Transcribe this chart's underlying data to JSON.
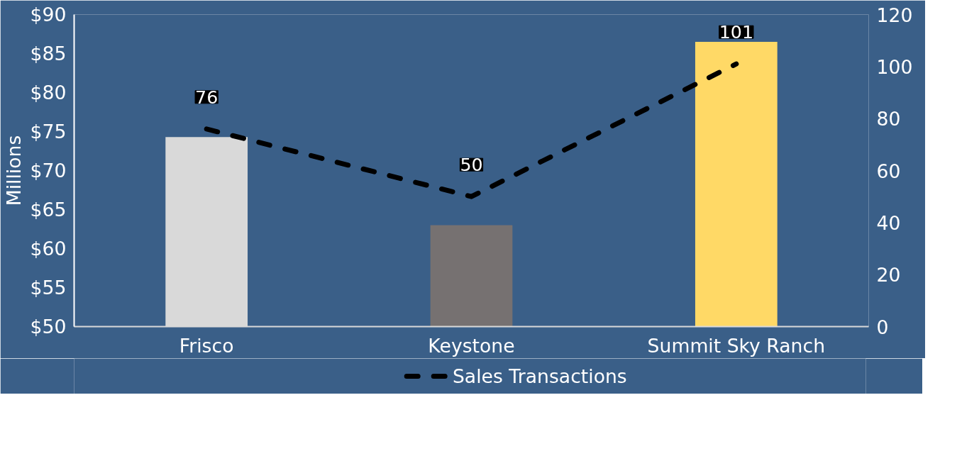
{
  "chart_data": {
    "type": "bar",
    "categories": [
      "Frisco",
      "Keystone",
      "Summit Sky Ranch"
    ],
    "ylabel": "Millions",
    "ylim": [
      50,
      90
    ],
    "yticks": [
      {
        "value": 50,
        "label": "$50"
      },
      {
        "value": 55,
        "label": "$55"
      },
      {
        "value": 60,
        "label": "$60"
      },
      {
        "value": 65,
        "label": "$65"
      },
      {
        "value": 70,
        "label": "$70"
      },
      {
        "value": 75,
        "label": "$75"
      },
      {
        "value": 80,
        "label": "$80"
      },
      {
        "value": 85,
        "label": "$85"
      },
      {
        "value": 90,
        "label": "$90"
      }
    ],
    "y2lim": [
      0,
      120
    ],
    "y2ticks": [
      0,
      20,
      40,
      60,
      80,
      100,
      120
    ],
    "series": [
      {
        "colors": [
          "#d9d9d9",
          "#767171",
          "#ffd966"
        ],
        "values": [
          74.3,
          63,
          86.5
        ]
      },
      {
        "type": "line",
        "name": "Sales Transactions",
        "color": "#000000",
        "axis": "y2",
        "line_style": "dashed",
        "values": [
          76,
          50,
          101
        ],
        "data_labels": true
      }
    ],
    "grid": false,
    "legend": "bottom"
  }
}
